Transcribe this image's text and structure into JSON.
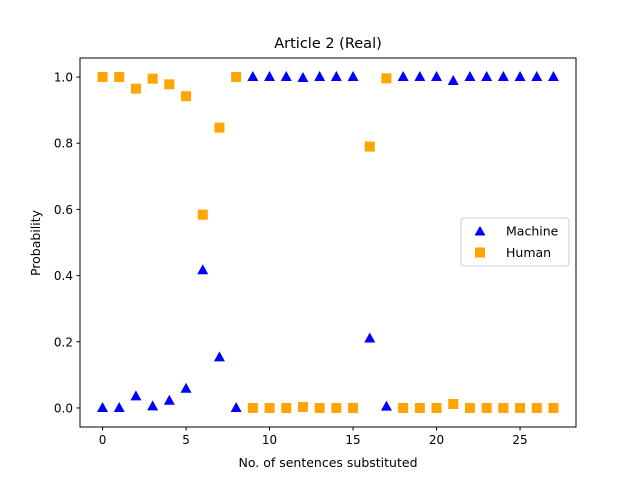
{
  "chart_data": {
    "type": "scatter",
    "title": "Article 2 (Real)",
    "xlabel": "No. of sentences substituted",
    "ylabel": "Probability",
    "xlim": [
      -1.35,
      28.35
    ],
    "ylim": [
      -0.0575,
      1.0575
    ],
    "xticks": [
      0,
      5,
      10,
      15,
      20,
      25
    ],
    "yticks": [
      0.0,
      0.2,
      0.4,
      0.6,
      0.8,
      1.0
    ],
    "ytick_labels": [
      "0.0",
      "0.2",
      "0.4",
      "0.6",
      "0.8",
      "1.0"
    ],
    "grid": false,
    "legend_position": "center-right",
    "x": [
      0,
      1,
      2,
      3,
      4,
      5,
      6,
      7,
      8,
      9,
      10,
      11,
      12,
      13,
      14,
      15,
      16,
      17,
      18,
      19,
      20,
      21,
      22,
      23,
      24,
      25,
      26,
      27
    ],
    "series": [
      {
        "name": "Machine",
        "marker": "triangle",
        "color": "#0000ff",
        "values": [
          0.0,
          0.0,
          0.035,
          0.005,
          0.022,
          0.058,
          0.416,
          0.153,
          0.0,
          1.0,
          1.0,
          1.0,
          0.997,
          1.0,
          1.0,
          1.0,
          0.21,
          0.004,
          1.0,
          1.0,
          1.0,
          0.988,
          1.0,
          1.0,
          1.0,
          1.0,
          1.0,
          1.0
        ]
      },
      {
        "name": "Human",
        "marker": "square",
        "color": "#ffa500",
        "values": [
          1.0,
          1.0,
          0.965,
          0.995,
          0.978,
          0.942,
          0.584,
          0.847,
          1.0,
          0.0,
          0.0,
          0.0,
          0.003,
          0.0,
          0.0,
          0.0,
          0.79,
          0.996,
          0.0,
          0.0,
          0.0,
          0.012,
          0.0,
          0.0,
          0.0,
          0.0,
          0.0,
          0.0
        ]
      }
    ]
  }
}
